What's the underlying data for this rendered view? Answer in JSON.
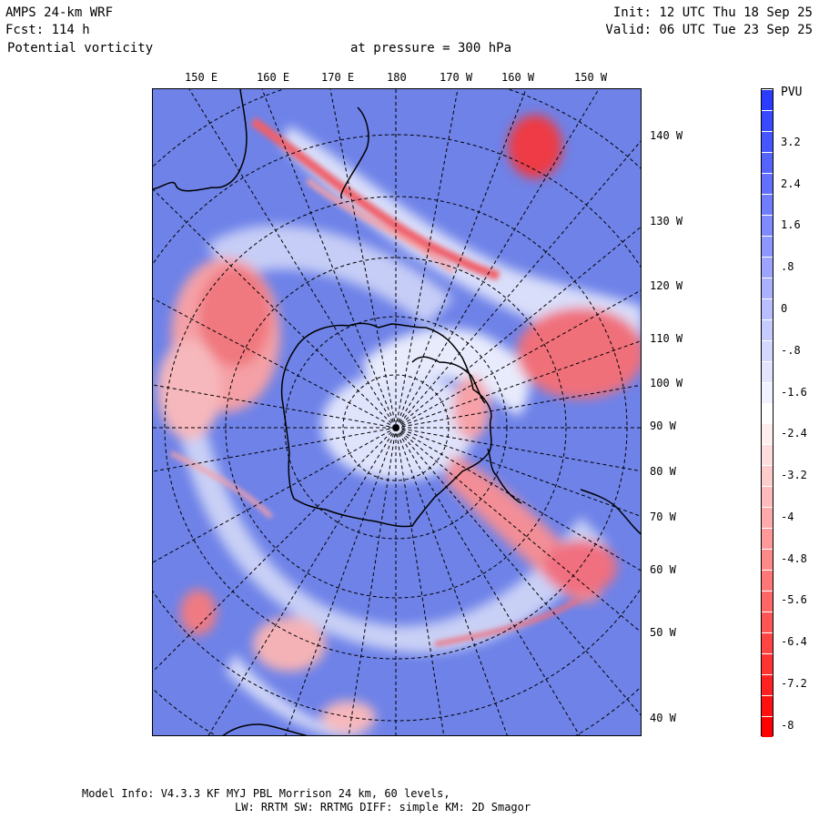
{
  "header": {
    "model": "AMPS 24-km WRF",
    "forecast": "Fcst:  114 h",
    "field": "Potential vorticity",
    "level": "at pressure =  300 hPa",
    "init": "Init: 12 UTC Thu 18 Sep 25",
    "valid": "Valid: 06 UTC Tue 23 Sep 25"
  },
  "top_longitude_labels": [
    "150 E",
    "160 E",
    "170 E",
    "180",
    "170 W",
    "160 W",
    "150 W"
  ],
  "right_longitude_labels": [
    "140 W",
    "130 W",
    "120 W",
    "110 W",
    "100 W",
    "90 W",
    "80 W",
    "70 W",
    "60 W",
    "50 W",
    "40 W"
  ],
  "colorbar": {
    "unit": "PVU",
    "labels": [
      "3.2",
      "2.4",
      "1.6",
      ".8",
      "0",
      "-.8",
      "-1.6",
      "-2.4",
      "-3.2",
      "-4",
      "-4.8",
      "-5.6",
      "-6.4",
      "-7.2",
      "-8"
    ],
    "color_high": "#2a3cff",
    "color_mid": "#ffffff",
    "color_low": "#ff0000"
  },
  "colors": {
    "field_blue": "#6e82e8",
    "field_red": "#f0606a",
    "coast": "#000000"
  },
  "footer": {
    "line1": "Model Info: V4.3.3   KF      MYJ PBL  Morrison              24 km,   60 levels,",
    "line2": "LW: RRTM SW: RRTMG   DIFF: simple KM: 2D Smagor"
  }
}
